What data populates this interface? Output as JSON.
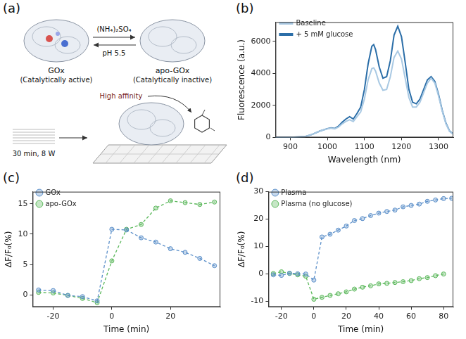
{
  "diagram": {
    "panel": "(a)",
    "left": {
      "label": "GOx",
      "state": "(Catalytically active)"
    },
    "right": {
      "label": "apo-GOx",
      "state": "(Catalytically inactive)"
    },
    "forward": "(NH₄)₂SO₄",
    "reverse": "pH 5.5",
    "affinity": "High affinity",
    "treatment": "30 min, 8 W"
  },
  "chart_data": [
    {
      "panel": "(b)",
      "type": "line",
      "x_label": "Wavelength (nm)",
      "y_label": "Fluorescence (a.u.)",
      "xlim": [
        860,
        1340
      ],
      "xticks": [
        900,
        1000,
        1100,
        1200,
        1300
      ],
      "ylim": [
        0,
        7200
      ],
      "yticks": [
        0,
        2000,
        4000,
        6000
      ],
      "grid": false,
      "legend": "upper left",
      "x": [
        860,
        900,
        940,
        960,
        980,
        1000,
        1010,
        1020,
        1030,
        1040,
        1050,
        1060,
        1070,
        1080,
        1090,
        1100,
        1110,
        1120,
        1125,
        1130,
        1140,
        1150,
        1160,
        1170,
        1180,
        1190,
        1200,
        1210,
        1220,
        1230,
        1240,
        1250,
        1260,
        1270,
        1280,
        1290,
        1300,
        1310,
        1320,
        1330,
        1340
      ],
      "series": [
        {
          "name": "Baseline",
          "color": "#a9c9e3",
          "marker": "none",
          "line_style": "solid",
          "values": [
            5,
            10,
            50,
            200,
            400,
            530,
            580,
            540,
            650,
            850,
            1000,
            1100,
            1000,
            1300,
            1600,
            2400,
            3600,
            4300,
            4350,
            4150,
            3400,
            2950,
            3000,
            3800,
            5000,
            5400,
            4900,
            3700,
            2500,
            1900,
            1900,
            2200,
            2800,
            3400,
            3700,
            3400,
            2600,
            1650,
            850,
            380,
            190
          ]
        },
        {
          "name": "+ 5 mM glucose",
          "color": "#2b6ea8",
          "marker": "none",
          "line_style": "solid",
          "values": [
            5,
            10,
            50,
            200,
            400,
            550,
            600,
            560,
            700,
            950,
            1150,
            1300,
            1150,
            1500,
            1900,
            3000,
            4600,
            5700,
            5800,
            5500,
            4400,
            3700,
            3800,
            4800,
            6400,
            6950,
            6300,
            4700,
            3000,
            2200,
            2100,
            2400,
            3000,
            3600,
            3800,
            3500,
            2700,
            1700,
            900,
            400,
            200
          ]
        }
      ]
    },
    {
      "panel": "(c)",
      "type": "line",
      "x_label": "Time (min)",
      "y_label": "ΔF/F₀(%)",
      "xlim": [
        -27,
        37
      ],
      "xticks": [
        -20,
        0,
        20
      ],
      "ylim": [
        -2,
        17
      ],
      "yticks": [
        0,
        5,
        10,
        15
      ],
      "grid": false,
      "legend": "upper left",
      "x": [
        -25,
        -20,
        -15,
        -10,
        -5,
        0,
        5,
        10,
        15,
        20,
        25,
        30,
        35
      ],
      "series": [
        {
          "name": "GOx",
          "color": "#5b8fc9",
          "marker": "circle",
          "line_style": "dashed",
          "values": [
            0.8,
            0.7,
            -0.1,
            -0.3,
            -1.0,
            10.8,
            10.7,
            9.4,
            8.7,
            7.6,
            7.0,
            6.0,
            4.8
          ]
        },
        {
          "name": "apo-GOx",
          "color": "#5cb85c",
          "marker": "circle",
          "line_style": "dashed",
          "values": [
            0.4,
            0.3,
            -0.1,
            -0.6,
            -1.3,
            5.6,
            10.8,
            11.6,
            14.3,
            15.5,
            15.2,
            14.9,
            15.3
          ]
        }
      ]
    },
    {
      "panel": "(d)",
      "type": "line",
      "x_label": "Time (min)",
      "y_label": "ΔF/F₀(%)",
      "xlim": [
        -28,
        86
      ],
      "xticks": [
        -20,
        0,
        20,
        40,
        60,
        80
      ],
      "ylim": [
        -12,
        30
      ],
      "yticks": [
        -10,
        0,
        10,
        20,
        30
      ],
      "grid": false,
      "legend": "upper left",
      "x": [
        -25,
        -20,
        -15,
        -10,
        -5,
        0,
        5,
        10,
        15,
        20,
        25,
        30,
        35,
        40,
        45,
        50,
        55,
        60,
        65,
        70,
        75,
        80,
        85
      ],
      "series": [
        {
          "name": "Plasma",
          "color": "#5b8fc9",
          "marker": "circle",
          "line_style": "dashed",
          "values": [
            -0.3,
            -0.5,
            0.3,
            0.1,
            0.0,
            -2.2,
            13.5,
            14.5,
            16.0,
            17.5,
            19.5,
            20.2,
            21.3,
            22.2,
            22.8,
            23.3,
            24.5,
            25.0,
            25.5,
            26.5,
            27.0,
            27.5,
            27.6
          ]
        },
        {
          "name": "Plasma (no glucose)",
          "color": "#5cb85c",
          "marker": "circle",
          "line_style": "dashed",
          "values": [
            0.2,
            0.8,
            0.2,
            -0.3,
            -0.8,
            -9.2,
            -8.5,
            -7.8,
            -7.2,
            -6.5,
            -5.5,
            -4.8,
            -4.3,
            -3.6,
            -3.4,
            -3.1,
            -2.8,
            -2.4,
            -1.7,
            -1.3,
            -0.6,
            0.0,
            null
          ]
        }
      ]
    }
  ]
}
